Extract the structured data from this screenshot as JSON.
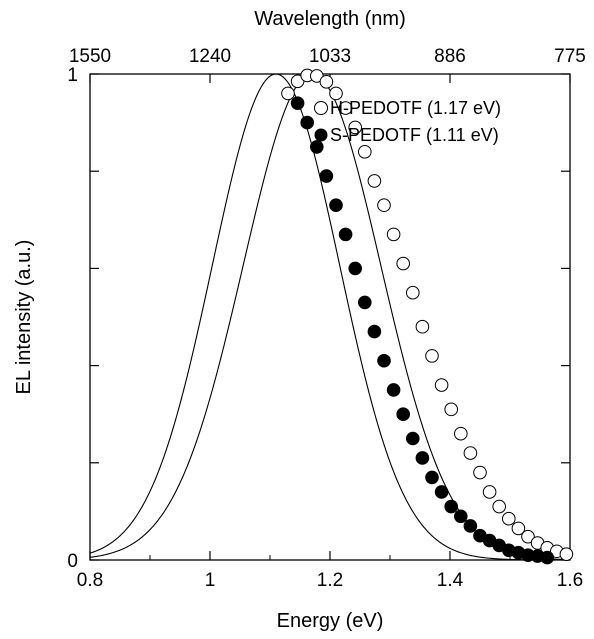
{
  "chart_data": {
    "type": "scatter",
    "xlabel": "Energy (eV)",
    "ylabel": "EL intensity (a.u.)",
    "x2label": "Wavelength (nm)",
    "xlim": [
      0.8,
      1.6
    ],
    "ylim": [
      0,
      1.0
    ],
    "xticks": [
      0.8,
      1.0,
      1.2,
      1.4,
      1.6
    ],
    "xtick_labels": [
      "0.8",
      "1",
      "1.2",
      "1.4",
      "1.6"
    ],
    "yticks": [
      0,
      0.2,
      0.4,
      0.6,
      0.8,
      1.0
    ],
    "ytick_labels": [
      "0",
      "",
      "",
      "",
      "",
      "1"
    ],
    "x2ticks": [
      {
        "energy": 0.8,
        "label": "1550"
      },
      {
        "energy": 1.0,
        "label": "1240"
      },
      {
        "energy": 1.2,
        "label": "1033"
      },
      {
        "energy": 1.4,
        "label": "886"
      },
      {
        "energy": 1.6,
        "label": "775"
      }
    ],
    "legend_position": "top-right",
    "series": [
      {
        "name": "H-PEDOTF (1.17 eV)",
        "marker": "open-circle",
        "peak": 1.17,
        "fwhm": 0.27,
        "x": [
          1.13,
          1.146,
          1.162,
          1.178,
          1.194,
          1.21,
          1.226,
          1.242,
          1.258,
          1.274,
          1.29,
          1.306,
          1.322,
          1.338,
          1.354,
          1.37,
          1.386,
          1.402,
          1.418,
          1.434,
          1.45,
          1.466,
          1.482,
          1.498,
          1.514,
          1.53,
          1.546,
          1.562,
          1.578,
          1.594
        ],
        "y": [
          0.96,
          0.985,
          0.997,
          0.996,
          0.984,
          0.96,
          0.93,
          0.89,
          0.84,
          0.78,
          0.73,
          0.67,
          0.61,
          0.55,
          0.48,
          0.42,
          0.36,
          0.31,
          0.26,
          0.22,
          0.18,
          0.14,
          0.11,
          0.085,
          0.065,
          0.048,
          0.035,
          0.025,
          0.018,
          0.012
        ]
      },
      {
        "name": "S-PEDOTF (1.11 eV)",
        "marker": "filled-circle",
        "peak": 1.11,
        "fwhm": 0.25,
        "x": [
          1.146,
          1.162,
          1.178,
          1.194,
          1.21,
          1.226,
          1.242,
          1.258,
          1.274,
          1.29,
          1.306,
          1.322,
          1.338,
          1.354,
          1.37,
          1.386,
          1.402,
          1.418,
          1.434,
          1.45,
          1.466,
          1.482,
          1.498,
          1.514,
          1.53,
          1.546,
          1.562
        ],
        "y": [
          0.94,
          0.9,
          0.85,
          0.79,
          0.73,
          0.67,
          0.6,
          0.53,
          0.47,
          0.41,
          0.35,
          0.3,
          0.25,
          0.21,
          0.17,
          0.14,
          0.11,
          0.09,
          0.07,
          0.05,
          0.04,
          0.03,
          0.02,
          0.015,
          0.01,
          0.008,
          0.005
        ]
      }
    ]
  }
}
